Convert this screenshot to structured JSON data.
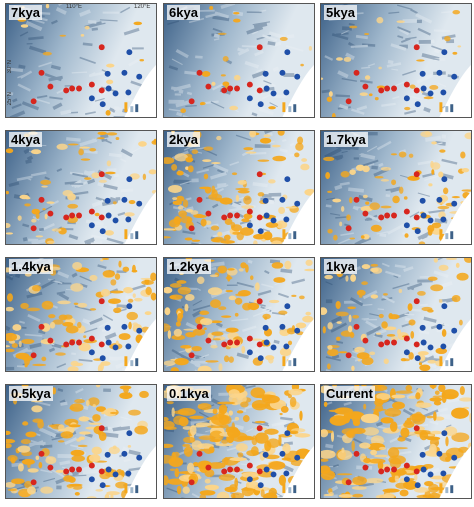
{
  "colors": {
    "background": "#ffffff",
    "terrain_light": "#dfe8ef",
    "terrain_mid": "#9fb7cc",
    "terrain_dark": "#3d6188",
    "sea": "#ffffff",
    "suitable_habitat": "#f4a71c",
    "suitable_habitat_light": "#fbd58a",
    "dot_red": "#d7261e",
    "dot_blue": "#1f4fa8"
  },
  "longitude_labels": [
    "110°E",
    "120°E"
  ],
  "latitude_labels": [
    "30°N",
    "25°N"
  ],
  "panels": [
    {
      "label": "7kya",
      "suitability": 0.03
    },
    {
      "label": "6kya",
      "suitability": 0.05
    },
    {
      "label": "5kya",
      "suitability": 0.08
    },
    {
      "label": "4kya",
      "suitability": 0.2
    },
    {
      "label": "2kya",
      "suitability": 0.42
    },
    {
      "label": "1.7kya",
      "suitability": 0.26
    },
    {
      "label": "1.4kya",
      "suitability": 0.4
    },
    {
      "label": "1.2kya",
      "suitability": 0.4
    },
    {
      "label": "1kya",
      "suitability": 0.3
    },
    {
      "label": "0.5kya",
      "suitability": 0.42
    },
    {
      "label": "0.1kya",
      "suitability": 0.72
    },
    {
      "label": "Current",
      "suitability": 0.7
    }
  ]
}
